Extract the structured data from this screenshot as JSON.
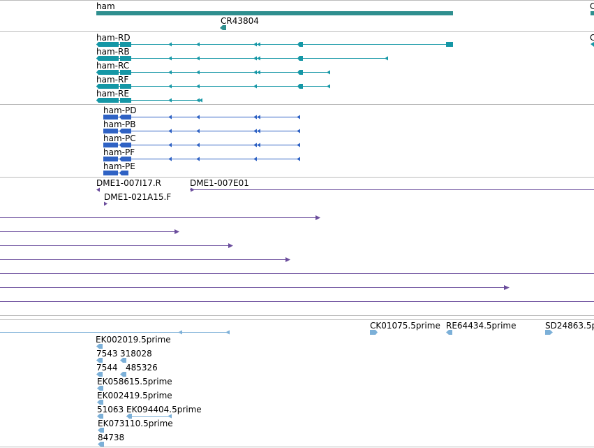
{
  "colors": {
    "gene": "#2f8f8f",
    "transcript": "#1597a6",
    "protein": "#2f62c4",
    "cdna": "#6a4c9c",
    "est": "#7cb0d8",
    "divider": "#bbbbbb"
  },
  "tracks": {
    "genes": {
      "gene_label": "ham",
      "cr_label": "CR43804",
      "edge_label": "C"
    },
    "transcripts": {
      "labels": [
        "ham-RD",
        "ham-RB",
        "ham-RC",
        "ham-RF",
        "ham-RE"
      ],
      "edge_label": "C"
    },
    "proteins": {
      "labels": [
        "ham-PD",
        "ham-PB",
        "ham-PC",
        "ham-PF",
        "ham-PE"
      ]
    },
    "cdna": {
      "labels": [
        "DME1-007I17.R",
        "DME1-007E01",
        "DME1-021A15.F"
      ]
    },
    "est": {
      "labels": [
        "CK01075.5prime",
        "RE64434.5prime",
        "SD24863.5p",
        "EK002019.5prime",
        "7543",
        "318028",
        "7544",
        "485326",
        "EK058615.5prime",
        "EK002419.5prime",
        "51063",
        "EK094404.5prime",
        "EK073110.5prime",
        "84738"
      ]
    }
  }
}
